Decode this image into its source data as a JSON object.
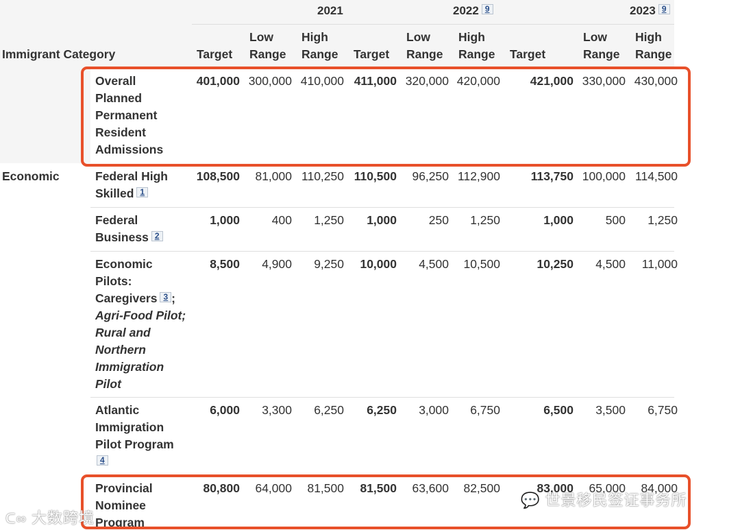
{
  "table": {
    "category_header": "Immigrant Category",
    "years": [
      {
        "label": "2021",
        "footnote": ""
      },
      {
        "label": "2022",
        "footnote": "9"
      },
      {
        "label": "2023",
        "footnote": "9"
      }
    ],
    "subheaders": {
      "target": "Target",
      "low": [
        "Low",
        "Range"
      ],
      "high": [
        "High",
        "Range"
      ]
    },
    "rows": [
      {
        "group": "",
        "label_lines": [
          "Overall",
          "Planned",
          "Permanent",
          "Resident",
          "Admissions"
        ],
        "values": [
          "401,000",
          "300,000",
          "410,000",
          "411,000",
          "320,000",
          "420,000",
          "421,000",
          "330,000",
          "430,000"
        ]
      },
      {
        "group": "Economic",
        "label_lines": [
          "Federal High",
          "Skilled"
        ],
        "footnote": "1",
        "values": [
          "108,500",
          "81,000",
          "110,250",
          "110,500",
          "96,250",
          "112,900",
          "113,750",
          "100,000",
          "114,500"
        ]
      },
      {
        "group": "",
        "label_lines": [
          "Federal",
          "Business"
        ],
        "footnote": "2",
        "values": [
          "1,000",
          "400",
          "1,250",
          "1,000",
          "250",
          "1,250",
          "1,000",
          "500",
          "1,250"
        ]
      },
      {
        "group": "",
        "label_lines": [
          "Economic",
          "Pilots:",
          "Caregivers"
        ],
        "footnote": "3",
        "semicolon": ";",
        "italic_lines": [
          "Agri-Food Pilot;",
          "Rural and",
          "Northern",
          "Immigration",
          "Pilot"
        ],
        "values": [
          "8,500",
          "4,900",
          "9,250",
          "10,000",
          "4,500",
          "10,500",
          "10,250",
          "4,500",
          "11,000"
        ]
      },
      {
        "group": "",
        "label_lines": [
          "Atlantic",
          "Immigration",
          "Pilot Program"
        ],
        "footnote": "4",
        "values": [
          "6,000",
          "3,300",
          "6,250",
          "6,250",
          "3,000",
          "6,750",
          "6,500",
          "3,500",
          "6,750"
        ]
      },
      {
        "group": "",
        "label_lines": [
          "Provincial",
          "Nominee",
          "Program"
        ],
        "values": [
          "80,800",
          "64,000",
          "81,500",
          "81,500",
          "63,600",
          "82,500",
          "83,000",
          "65,000",
          "84,000"
        ]
      }
    ]
  },
  "watermarks": {
    "left": "大数跨境",
    "right": "世景移民签证事务所"
  },
  "colors": {
    "highlight": "#e8502a",
    "header_bg": "#f5f5f5"
  }
}
